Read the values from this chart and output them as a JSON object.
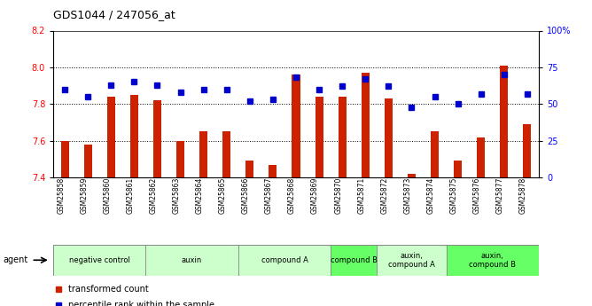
{
  "title": "GDS1044 / 247056_at",
  "samples": [
    "GSM25858",
    "GSM25859",
    "GSM25860",
    "GSM25861",
    "GSM25862",
    "GSM25863",
    "GSM25864",
    "GSM25865",
    "GSM25866",
    "GSM25867",
    "GSM25868",
    "GSM25869",
    "GSM25870",
    "GSM25871",
    "GSM25872",
    "GSM25873",
    "GSM25874",
    "GSM25875",
    "GSM25876",
    "GSM25877",
    "GSM25878"
  ],
  "red_values": [
    7.6,
    7.58,
    7.84,
    7.85,
    7.82,
    7.6,
    7.65,
    7.65,
    7.49,
    7.47,
    7.96,
    7.84,
    7.84,
    7.97,
    7.83,
    7.42,
    7.65,
    7.49,
    7.62,
    8.01,
    7.69
  ],
  "blue_values": [
    60,
    55,
    63,
    65,
    63,
    58,
    60,
    60,
    52,
    53,
    68,
    60,
    62,
    67,
    62,
    48,
    55,
    50,
    57,
    70,
    57
  ],
  "ylim_left": [
    7.4,
    8.2
  ],
  "ylim_right": [
    0,
    100
  ],
  "yticks_left": [
    7.4,
    7.6,
    7.8,
    8.0,
    8.2
  ],
  "yticks_right": [
    0,
    25,
    50,
    75,
    100
  ],
  "ytick_labels_right": [
    "0",
    "25",
    "50",
    "75",
    "100%"
  ],
  "groups": [
    {
      "label": "negative control",
      "indices": [
        0,
        1,
        2,
        3
      ],
      "color": "#ccffcc"
    },
    {
      "label": "auxin",
      "indices": [
        4,
        5,
        6,
        7
      ],
      "color": "#ccffcc"
    },
    {
      "label": "compound A",
      "indices": [
        8,
        9,
        10,
        11
      ],
      "color": "#ccffcc"
    },
    {
      "label": "compound B",
      "indices": [
        12,
        13
      ],
      "color": "#66ff66"
    },
    {
      "label": "auxin,\ncompound A",
      "indices": [
        14,
        15,
        16
      ],
      "color": "#ccffcc"
    },
    {
      "label": "auxin,\ncompound B",
      "indices": [
        17,
        18,
        19,
        20
      ],
      "color": "#66ff66"
    }
  ],
  "bar_color": "#cc2200",
  "dot_color": "#0000cc",
  "baseline": 7.4,
  "legend_red": "transformed count",
  "legend_blue": "percentile rank within the sample"
}
